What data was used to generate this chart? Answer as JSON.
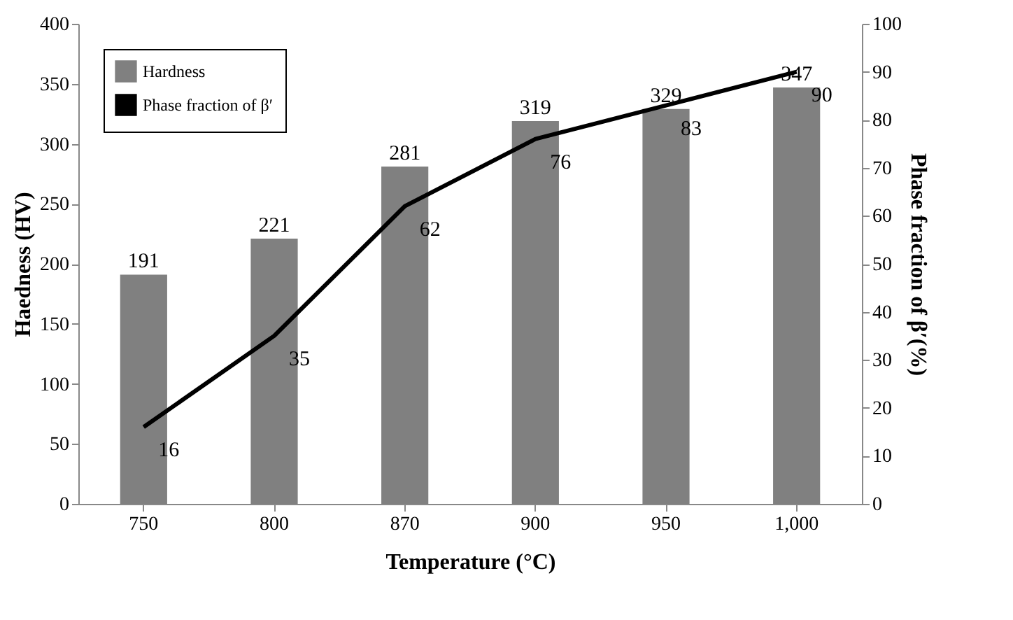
{
  "chart_data": {
    "type": "bar",
    "xlabel": "Temperature (°C)",
    "ylabel": "Haedness (HV)",
    "y2label": "Phase fraction of β′(%)",
    "categories": [
      "750",
      "800",
      "870",
      "900",
      "950",
      "1,000"
    ],
    "series": [
      {
        "name": "Hardness",
        "color": "#808080",
        "values": [
          191,
          221,
          281,
          319,
          329,
          347
        ]
      },
      {
        "name": "Phase fraction of β′",
        "type": "line",
        "axis": "y2",
        "color": "#000000",
        "values": [
          16,
          35,
          62,
          76,
          83,
          90
        ]
      }
    ],
    "ylim": [
      0,
      400
    ],
    "yticks": [
      0,
      50,
      100,
      150,
      200,
      250,
      300,
      350,
      400
    ],
    "y2lim": [
      0,
      100
    ],
    "y2ticks": [
      0,
      10,
      20,
      30,
      40,
      50,
      60,
      70,
      80,
      90,
      100
    ],
    "data_labels": true,
    "legend": "top left",
    "grid": false,
    "marker": "none",
    "line_style": "solid"
  }
}
